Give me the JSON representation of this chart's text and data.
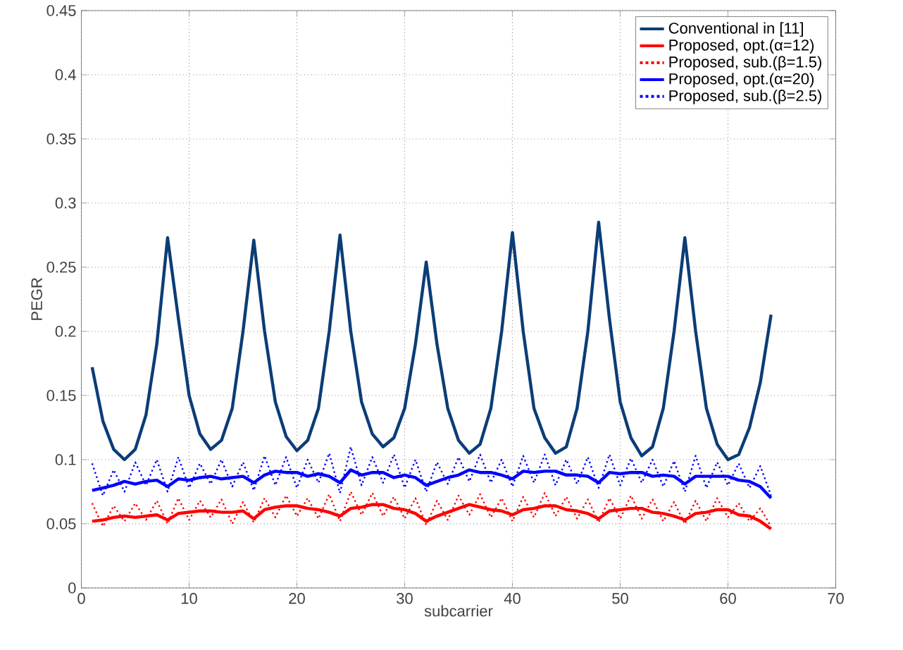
{
  "chart_data": {
    "type": "line",
    "xlabel": "subcarrier",
    "ylabel": "PEGR",
    "x": [
      1,
      2,
      3,
      4,
      5,
      6,
      7,
      8,
      9,
      10,
      11,
      12,
      13,
      14,
      15,
      16,
      17,
      18,
      19,
      20,
      21,
      22,
      23,
      24,
      25,
      26,
      27,
      28,
      29,
      30,
      31,
      32,
      33,
      34,
      35,
      36,
      37,
      38,
      39,
      40,
      41,
      42,
      43,
      44,
      45,
      46,
      47,
      48,
      49,
      50,
      51,
      52,
      53,
      54,
      55,
      56,
      57,
      58,
      59,
      60,
      61,
      62,
      63,
      64
    ],
    "xlim": [
      0,
      70
    ],
    "xticks": [
      0,
      10,
      20,
      30,
      40,
      50,
      60,
      70
    ],
    "ylim": [
      0,
      0.45
    ],
    "yticks": [
      0,
      0.05,
      0.1,
      0.15,
      0.2,
      0.25,
      0.3,
      0.35,
      0.4,
      0.45
    ],
    "grid": true,
    "legend": "top right",
    "marker": "none",
    "series": [
      {
        "name": "Conventional in [11]",
        "color": "#0b3d77",
        "line_style": "solid",
        "values": [
          0.172,
          0.13,
          0.108,
          0.1,
          0.108,
          0.135,
          0.19,
          0.273,
          0.21,
          0.15,
          0.12,
          0.108,
          0.115,
          0.14,
          0.2,
          0.271,
          0.2,
          0.145,
          0.118,
          0.107,
          0.115,
          0.14,
          0.2,
          0.275,
          0.2,
          0.145,
          0.12,
          0.11,
          0.117,
          0.14,
          0.19,
          0.254,
          0.19,
          0.14,
          0.115,
          0.105,
          0.112,
          0.14,
          0.2,
          0.277,
          0.2,
          0.14,
          0.117,
          0.105,
          0.11,
          0.14,
          0.2,
          0.285,
          0.21,
          0.145,
          0.117,
          0.103,
          0.11,
          0.14,
          0.2,
          0.273,
          0.2,
          0.14,
          0.112,
          0.1,
          0.104,
          0.125,
          0.16,
          0.213
        ]
      },
      {
        "name": "Proposed, opt.(α=12)",
        "color": "#ff0000",
        "line_style": "solid",
        "values": [
          0.052,
          0.053,
          0.055,
          0.056,
          0.055,
          0.056,
          0.057,
          0.053,
          0.058,
          0.059,
          0.06,
          0.06,
          0.059,
          0.059,
          0.06,
          0.054,
          0.061,
          0.063,
          0.064,
          0.064,
          0.062,
          0.061,
          0.059,
          0.056,
          0.062,
          0.063,
          0.065,
          0.065,
          0.062,
          0.061,
          0.058,
          0.052,
          0.056,
          0.059,
          0.062,
          0.065,
          0.063,
          0.061,
          0.06,
          0.057,
          0.061,
          0.062,
          0.064,
          0.064,
          0.061,
          0.06,
          0.058,
          0.054,
          0.06,
          0.061,
          0.062,
          0.062,
          0.059,
          0.058,
          0.056,
          0.053,
          0.058,
          0.059,
          0.061,
          0.061,
          0.057,
          0.056,
          0.052,
          0.046
        ]
      },
      {
        "name": "Proposed, sub.(β=1.5)",
        "color": "#ff0000",
        "line_style": "dotted",
        "values": [
          0.066,
          0.048,
          0.064,
          0.052,
          0.066,
          0.053,
          0.068,
          0.05,
          0.07,
          0.053,
          0.068,
          0.055,
          0.069,
          0.05,
          0.067,
          0.051,
          0.07,
          0.055,
          0.072,
          0.056,
          0.07,
          0.054,
          0.073,
          0.052,
          0.075,
          0.057,
          0.074,
          0.056,
          0.071,
          0.054,
          0.07,
          0.049,
          0.068,
          0.053,
          0.072,
          0.057,
          0.073,
          0.055,
          0.07,
          0.052,
          0.071,
          0.055,
          0.074,
          0.056,
          0.071,
          0.054,
          0.069,
          0.051,
          0.07,
          0.054,
          0.072,
          0.054,
          0.069,
          0.052,
          0.067,
          0.05,
          0.068,
          0.052,
          0.07,
          0.055,
          0.066,
          0.052,
          0.062,
          0.048
        ]
      },
      {
        "name": "Proposed, opt.(α=20)",
        "color": "#0000ff",
        "line_style": "solid",
        "values": [
          0.076,
          0.078,
          0.08,
          0.083,
          0.081,
          0.083,
          0.084,
          0.079,
          0.085,
          0.084,
          0.086,
          0.087,
          0.085,
          0.086,
          0.087,
          0.082,
          0.088,
          0.091,
          0.09,
          0.09,
          0.087,
          0.089,
          0.087,
          0.082,
          0.092,
          0.088,
          0.09,
          0.09,
          0.086,
          0.088,
          0.086,
          0.08,
          0.083,
          0.086,
          0.088,
          0.092,
          0.09,
          0.09,
          0.088,
          0.085,
          0.091,
          0.09,
          0.091,
          0.091,
          0.088,
          0.088,
          0.087,
          0.082,
          0.09,
          0.089,
          0.09,
          0.09,
          0.087,
          0.088,
          0.087,
          0.081,
          0.087,
          0.087,
          0.087,
          0.087,
          0.084,
          0.083,
          0.079,
          0.07
        ]
      },
      {
        "name": "Proposed, sub.(β=2.5)",
        "color": "#0000ff",
        "line_style": "dotted",
        "values": [
          0.097,
          0.072,
          0.092,
          0.075,
          0.098,
          0.08,
          0.1,
          0.075,
          0.102,
          0.078,
          0.097,
          0.081,
          0.1,
          0.079,
          0.098,
          0.076,
          0.103,
          0.08,
          0.102,
          0.078,
          0.1,
          0.082,
          0.105,
          0.074,
          0.11,
          0.08,
          0.102,
          0.082,
          0.104,
          0.078,
          0.1,
          0.075,
          0.098,
          0.081,
          0.102,
          0.083,
          0.104,
          0.082,
          0.1,
          0.079,
          0.103,
          0.082,
          0.104,
          0.08,
          0.1,
          0.081,
          0.102,
          0.078,
          0.104,
          0.08,
          0.101,
          0.082,
          0.1,
          0.079,
          0.099,
          0.075,
          0.103,
          0.078,
          0.098,
          0.08,
          0.097,
          0.078,
          0.095,
          0.072
        ]
      }
    ]
  }
}
